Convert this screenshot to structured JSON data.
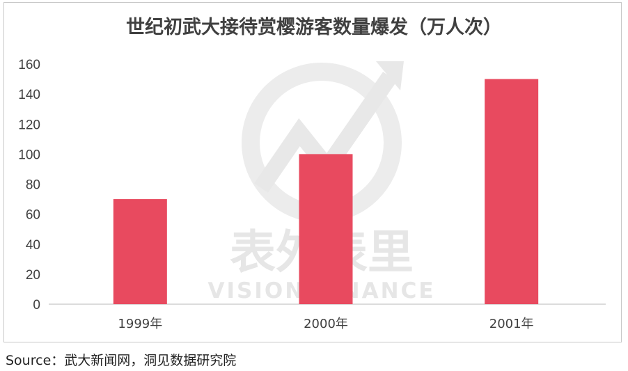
{
  "chart_data": {
    "type": "bar",
    "title": "世纪初武大接待赏樱游客数量爆发（万人次）",
    "categories": [
      "1999年",
      "2000年",
      "2001年"
    ],
    "values": [
      70,
      100,
      150
    ],
    "ylim": [
      0,
      160
    ],
    "yticks": [
      "0",
      "20",
      "40",
      "60",
      "80",
      "100",
      "120",
      "140",
      "160"
    ],
    "xlabel": "",
    "ylabel": "",
    "grid": false,
    "bar_color": "#e84a5f"
  },
  "watermark": {
    "cn": "表外表里",
    "en": "VISION FINANCE"
  },
  "source": "Source：武大新闻网，洞见数据研究院"
}
